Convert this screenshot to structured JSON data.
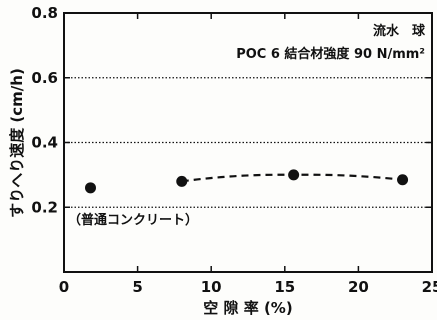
{
  "chart_data": {
    "type": "scatter",
    "title": "",
    "xlabel": "空 隙 率 (%)",
    "ylabel": "すりへり速度 (cm/h)",
    "xlim": [
      0,
      25
    ],
    "ylim": [
      0,
      0.8
    ],
    "x_ticks": [
      "0",
      "5",
      "10",
      "15",
      "20",
      "25"
    ],
    "y_ticks": [
      "0.2",
      "0.4",
      "0.6",
      "0.8"
    ],
    "y_gridlines": [
      0.6,
      0.4,
      0.2
    ],
    "grid_style": "dotted horizontal",
    "legend": "none",
    "annotations": {
      "line1": "流水　球",
      "line2": "POC 6  結合材強度 90 N/mm²",
      "reference_label": "（普通コンクリート）"
    },
    "series": [
      {
        "values": [
          {
            "x": 1.8,
            "y": 0.26
          }
        ],
        "line": "none"
      },
      {
        "values": [
          {
            "x": 8.0,
            "y": 0.28
          },
          {
            "x": 15.6,
            "y": 0.3
          },
          {
            "x": 23.0,
            "y": 0.285
          }
        ],
        "line": "dashed"
      }
    ],
    "colors": {
      "ink": "#111111",
      "background": "#fdfdfb"
    }
  }
}
